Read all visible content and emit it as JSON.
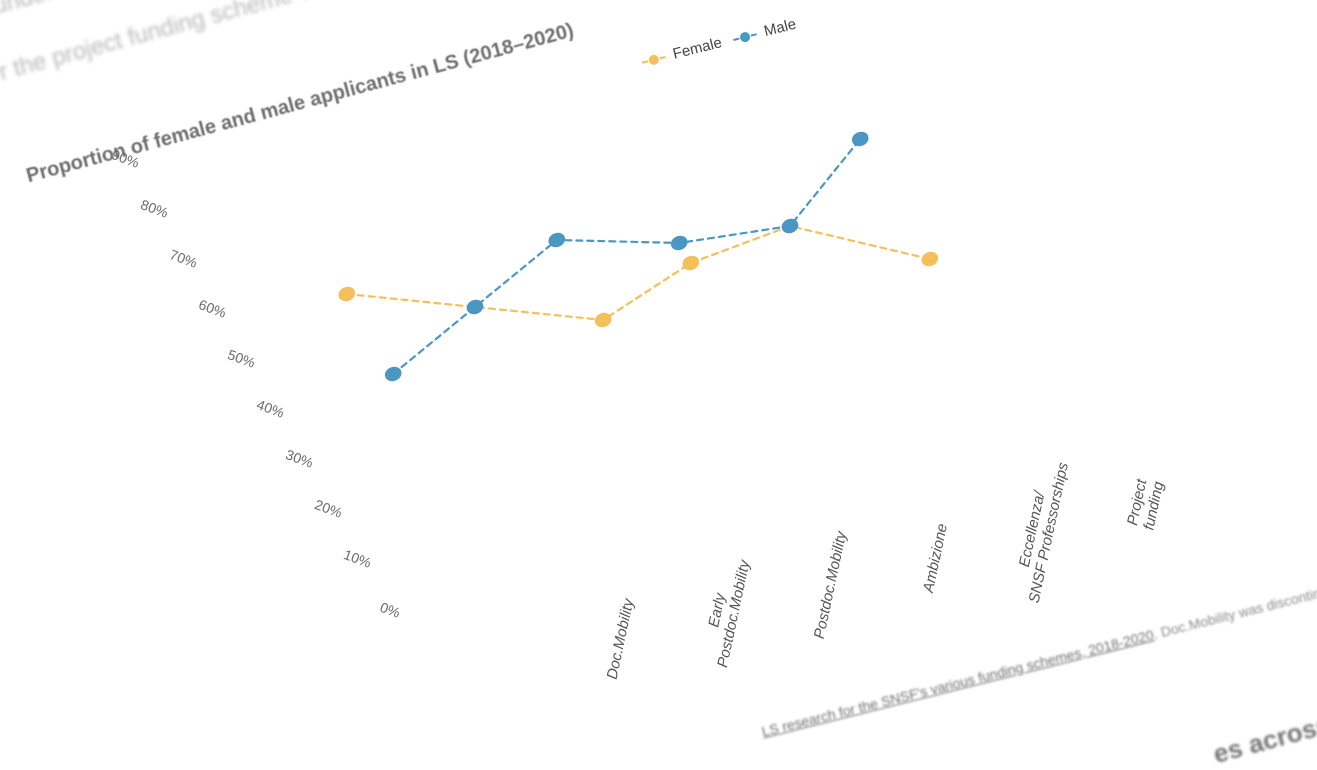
{
  "intro": {
    "line1": "under di",
    "line2": "r the project funding scheme of p"
  },
  "legend": {
    "female_label": "Female",
    "male_label": "Male"
  },
  "footnote": {
    "link_text": "LS research for the SNSF's various funding schemes, 2018-2020",
    "tail_text": ". Doc.Mobility was discontinued in"
  },
  "next_heading": "es across ca",
  "colors": {
    "female": "#f5bf5a",
    "male": "#4a97c3"
  },
  "chart_data": {
    "type": "line",
    "title": "Proportion of female and male applicants in LS (2018–2020)",
    "y_tick_labels": [
      "0%",
      "10%",
      "20%",
      "30%",
      "40%",
      "50%",
      "60%",
      "70%",
      "80%",
      "90%"
    ],
    "ylim": [
      0,
      90
    ],
    "categories": [
      "Doc.Mobility",
      "Early Postdoc.Mobility",
      "Postdoc.Mobility",
      "Ambizione",
      "Eccellenza/ SNSF Professorships",
      "Project funding"
    ],
    "category_label_lines": [
      [
        "Doc.Mobility"
      ],
      [
        "Early",
        "Postdoc.Mobility"
      ],
      [
        "Postdoc.Mobility"
      ],
      [
        "Ambizione"
      ],
      [
        "Eccellenza/",
        "SNSF Professorships"
      ],
      [
        "Project",
        "funding"
      ]
    ],
    "series": [
      {
        "name": "Female",
        "values": [
          58,
          50,
          42,
          48,
          50,
          38
        ]
      },
      {
        "name": "Male",
        "values": [
          42,
          50,
          58,
          52,
          50,
          62
        ]
      }
    ],
    "grid": false,
    "legend_position": "top"
  }
}
